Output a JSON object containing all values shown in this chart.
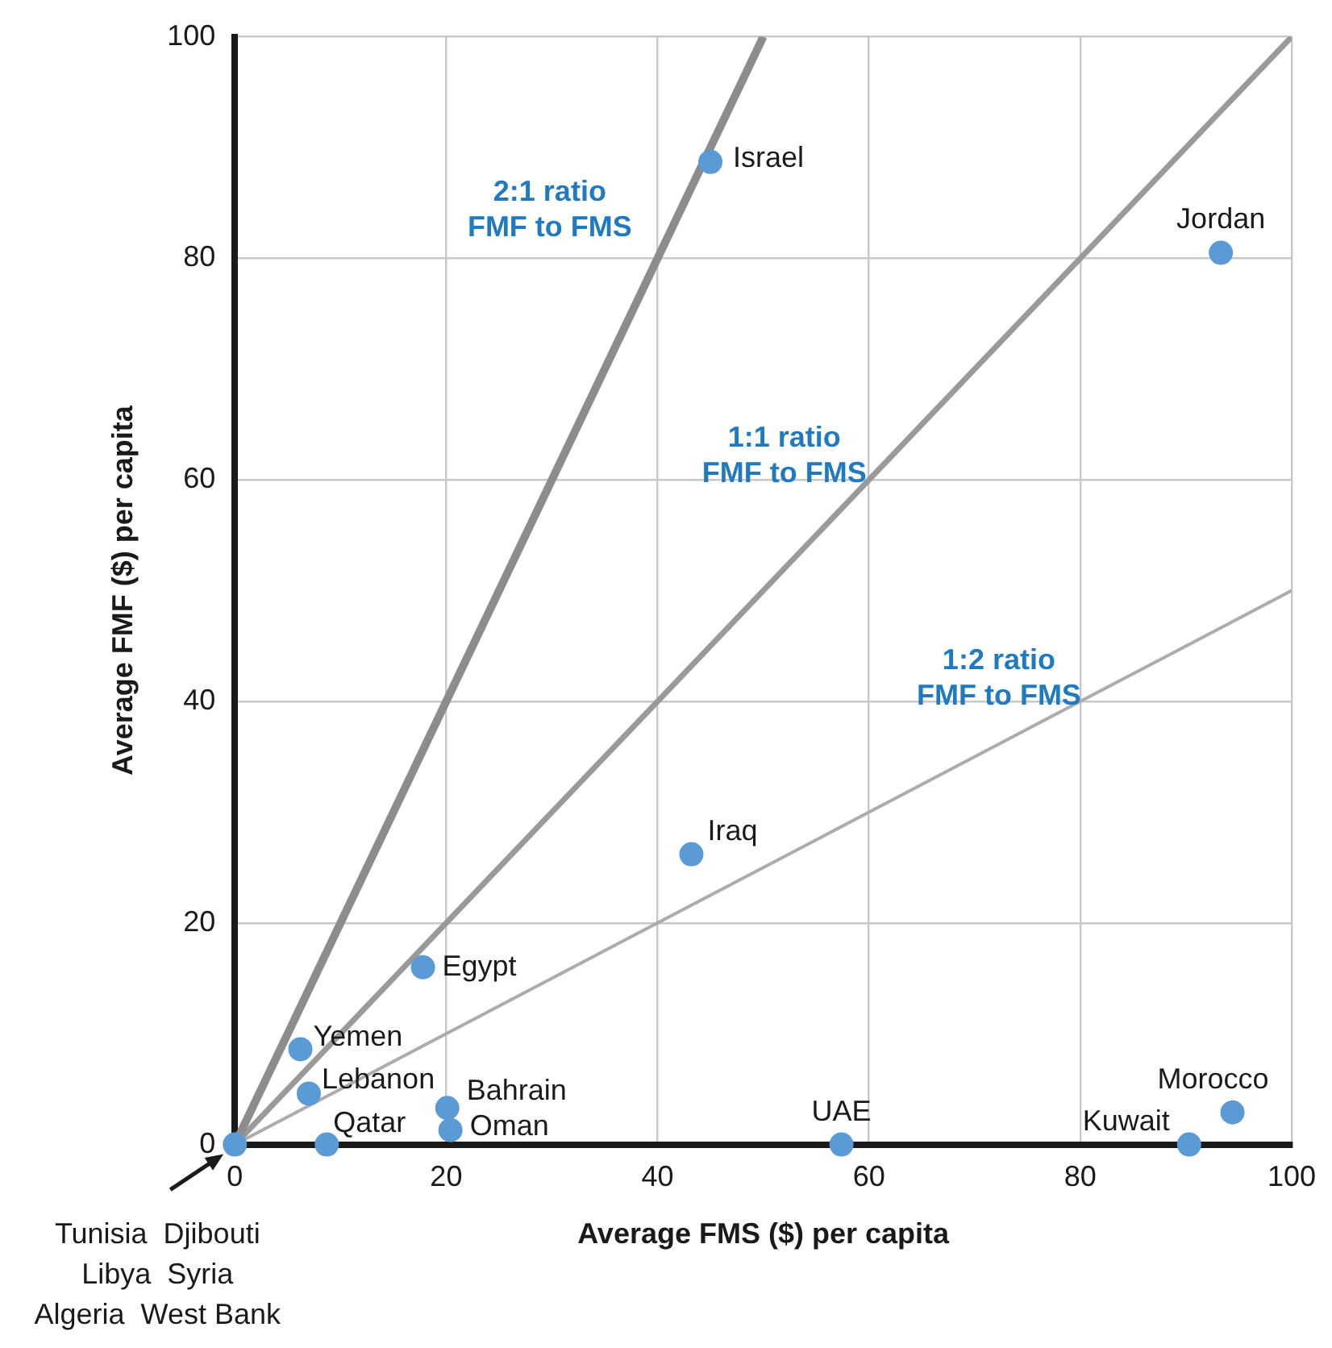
{
  "chart_data": {
    "type": "scatter",
    "xlabel": "Average FMS ($) per capita",
    "ylabel": "Average FMF ($) per capita",
    "xlim": [
      0,
      100
    ],
    "ylim": [
      0,
      100
    ],
    "xticks": [
      0,
      20,
      40,
      60,
      80,
      100
    ],
    "yticks": [
      0,
      20,
      40,
      60,
      80,
      100
    ],
    "grid": true,
    "marker": "circle",
    "annotations": [
      "2:1 ratio\nFMF to FMS",
      "1:1 ratio\nFMF to FMS",
      "1:2 ratio\nFMF to FMS",
      "Tunisia  Djibouti\nLibya  Syria\nAlgeria  West Bank"
    ],
    "series": [
      {
        "type": "line",
        "marker": "none",
        "color": "#8c8c8c",
        "x": [
          0,
          50
        ],
        "values": [
          0,
          100
        ]
      },
      {
        "type": "line",
        "marker": "none",
        "color": "#9a9a9a",
        "x": [
          0,
          100
        ],
        "values": [
          0,
          100
        ]
      },
      {
        "type": "line",
        "marker": "none",
        "color": "#acacac",
        "x": [
          0,
          100
        ],
        "values": [
          0,
          50
        ]
      },
      {
        "name": "Israel",
        "color": "#5b9bd5",
        "x": [
          45.0
        ],
        "values": [
          88.7
        ]
      },
      {
        "name": "Jordan",
        "color": "#5b9bd5",
        "x": [
          93.3
        ],
        "values": [
          80.5
        ]
      },
      {
        "name": "Iraq",
        "color": "#5b9bd5",
        "x": [
          43.2
        ],
        "values": [
          26.2
        ]
      },
      {
        "name": "Egypt",
        "color": "#5b9bd5",
        "x": [
          17.8
        ],
        "values": [
          16.0
        ]
      },
      {
        "name": "Yemen",
        "color": "#5b9bd5",
        "x": [
          6.2
        ],
        "values": [
          8.6
        ]
      },
      {
        "name": "Lebanon",
        "color": "#5b9bd5",
        "x": [
          7.0
        ],
        "values": [
          4.6
        ]
      },
      {
        "name": "Bahrain",
        "color": "#5b9bd5",
        "x": [
          20.1
        ],
        "values": [
          3.3
        ]
      },
      {
        "name": "Oman",
        "color": "#5b9bd5",
        "x": [
          20.4
        ],
        "values": [
          1.3
        ]
      },
      {
        "name": "Qatar",
        "color": "#5b9bd5",
        "x": [
          8.7
        ],
        "values": [
          0
        ]
      },
      {
        "name": "UAE",
        "color": "#5b9bd5",
        "x": [
          57.4
        ],
        "values": [
          0
        ]
      },
      {
        "name": "Kuwait",
        "color": "#5b9bd5",
        "x": [
          90.3
        ],
        "values": [
          0
        ]
      },
      {
        "name": "Morocco",
        "color": "#5b9bd5",
        "x": [
          94.4
        ],
        "values": [
          2.9
        ]
      },
      {
        "color": "#5b9bd5",
        "x": [
          0
        ],
        "values": [
          0
        ]
      }
    ]
  }
}
